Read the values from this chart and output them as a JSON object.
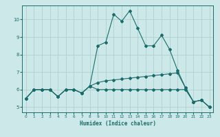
{
  "title": "",
  "xlabel": "Humidex (Indice chaleur)",
  "background_color": "#cce8e8",
  "grid_color": "#aacccc",
  "line_color": "#1a6b6b",
  "xlim": [
    -0.5,
    23.5
  ],
  "ylim": [
    4.7,
    10.8
  ],
  "yticks": [
    5,
    6,
    7,
    8,
    9,
    10
  ],
  "xticks": [
    0,
    1,
    2,
    3,
    4,
    5,
    6,
    7,
    8,
    9,
    10,
    11,
    12,
    13,
    14,
    15,
    16,
    17,
    18,
    19,
    20,
    21,
    22,
    23
  ],
  "line1_x": [
    0,
    1,
    2,
    3,
    4,
    5,
    6,
    7,
    8,
    9,
    10,
    11,
    12,
    13,
    14,
    15,
    16,
    17,
    18,
    19,
    20,
    21,
    22,
    23
  ],
  "line1_y": [
    5.5,
    6.0,
    6.0,
    6.0,
    5.6,
    6.0,
    6.0,
    5.8,
    6.2,
    8.5,
    8.7,
    10.3,
    9.9,
    10.5,
    9.5,
    8.5,
    8.5,
    9.1,
    8.3,
    7.1,
    6.1,
    5.3,
    5.4,
    5.0
  ],
  "line2_x": [
    0,
    1,
    2,
    3,
    4,
    5,
    6,
    7,
    8,
    9,
    10,
    11,
    12,
    13,
    14,
    15,
    16,
    17,
    18,
    19,
    20,
    21,
    22,
    23
  ],
  "line2_y": [
    5.5,
    6.0,
    6.0,
    6.0,
    5.6,
    6.0,
    6.0,
    5.8,
    6.2,
    6.4,
    6.5,
    6.55,
    6.6,
    6.65,
    6.7,
    6.75,
    6.8,
    6.85,
    6.9,
    6.95,
    6.1,
    5.3,
    5.4,
    5.0
  ],
  "line3_x": [
    0,
    1,
    2,
    3,
    4,
    5,
    6,
    7,
    8,
    9,
    10,
    11,
    12,
    13,
    14,
    15,
    16,
    17,
    18,
    19,
    20,
    21,
    22,
    23
  ],
  "line3_y": [
    5.5,
    6.0,
    6.0,
    6.0,
    5.6,
    6.0,
    6.0,
    5.8,
    6.2,
    6.0,
    6.0,
    6.0,
    6.0,
    6.0,
    6.0,
    6.0,
    6.0,
    6.0,
    6.0,
    6.0,
    6.0,
    5.3,
    5.4,
    5.0
  ]
}
